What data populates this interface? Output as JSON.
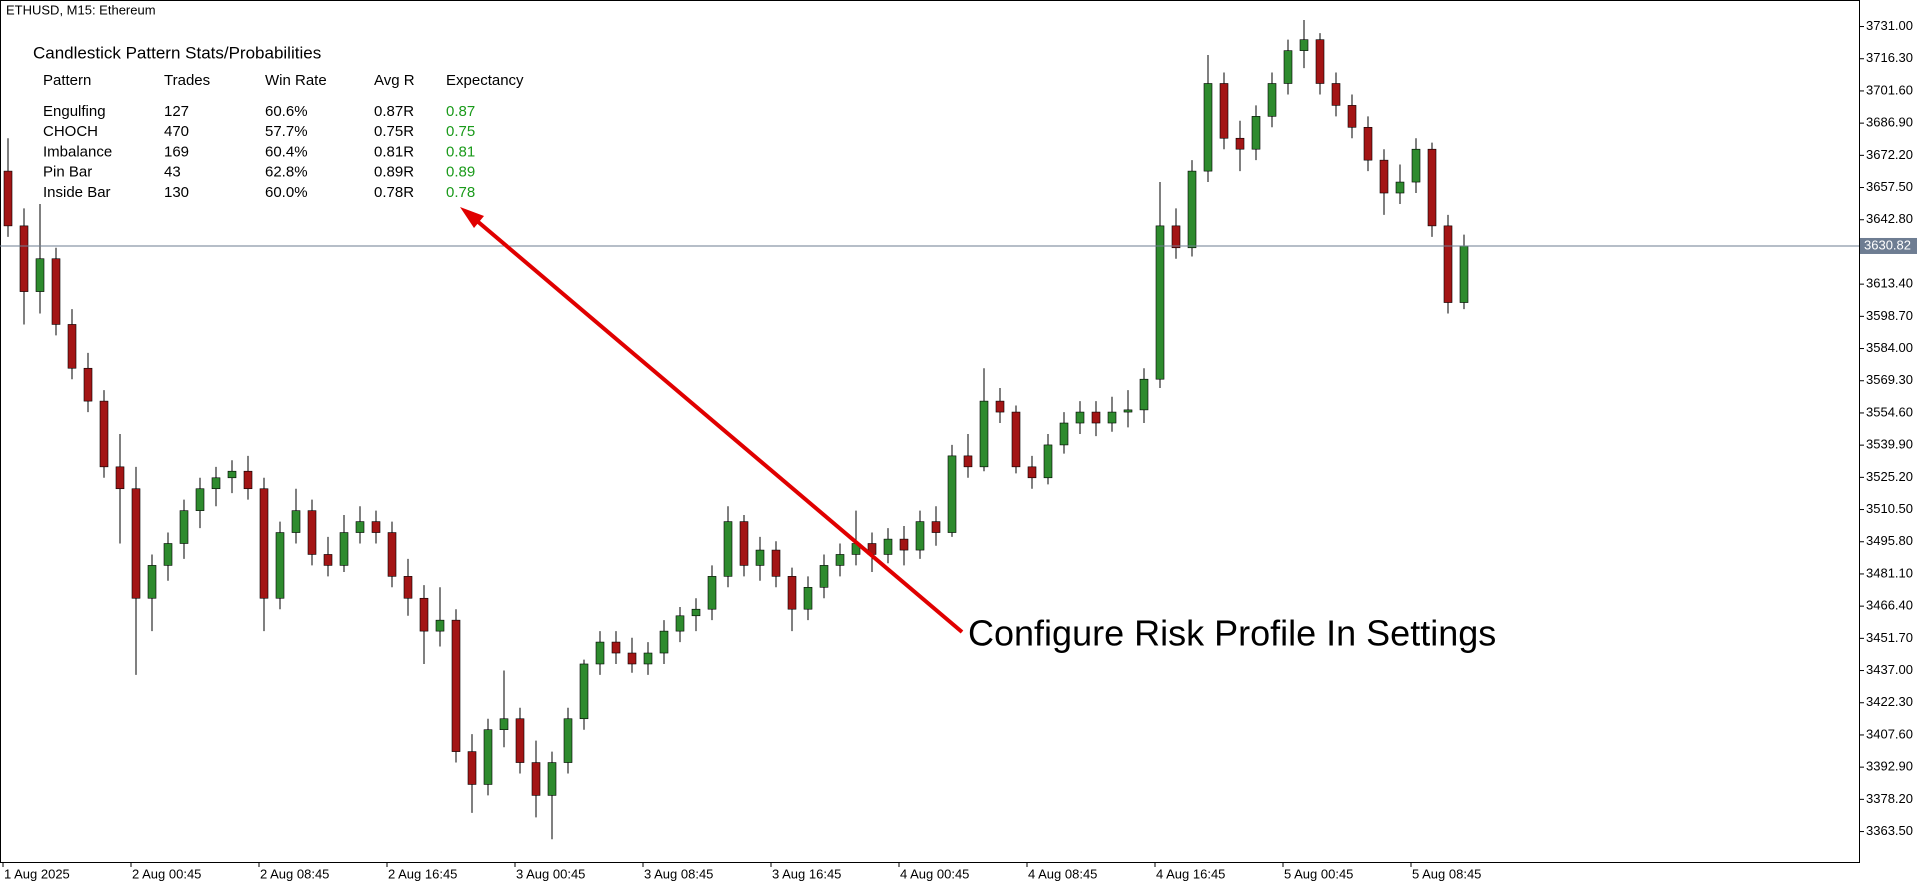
{
  "header": "ETHUSD, M15:  Ethereum",
  "stats_panel": {
    "title": "Candlestick Pattern Stats/Probabilities",
    "columns": [
      "Pattern",
      "Trades",
      "Win Rate",
      "Avg R",
      "Expectancy"
    ],
    "rows": [
      [
        "Engulfing",
        "127",
        "60.6%",
        "0.87R",
        "0.87"
      ],
      [
        "CHOCH",
        "470",
        "57.7%",
        "0.75R",
        "0.75"
      ],
      [
        "Imbalance",
        "169",
        "60.4%",
        "0.81R",
        "0.81"
      ],
      [
        "Pin Bar",
        "43",
        "62.8%",
        "0.89R",
        "0.89"
      ],
      [
        "Inside Bar",
        "130",
        "60.0%",
        "0.78R",
        "0.78"
      ]
    ],
    "expectancy_color": "#1a9a1a"
  },
  "chart_data": {
    "type": "candlestick",
    "annotation": "Configure Risk Profile In Settings",
    "up_color": "#2e8b2e",
    "down_color": "#a31515",
    "current_price": 3630.82,
    "current_price_color": "#6e7d92",
    "ylim": [
      3349.6,
      3742.2
    ],
    "yticks": [
      {
        "value": 3363.5,
        "label": "3363.50"
      },
      {
        "value": 3378.2,
        "label": "3378.20"
      },
      {
        "value": 3392.9,
        "label": "3392.90"
      },
      {
        "value": 3407.6,
        "label": "3407.60"
      },
      {
        "value": 3422.3,
        "label": "3422.30"
      },
      {
        "value": 3437,
        "label": "3437.00"
      },
      {
        "value": 3451.7,
        "label": "3451.70"
      },
      {
        "value": 3466.4,
        "label": "3466.40"
      },
      {
        "value": 3481.1,
        "label": "3481.10"
      },
      {
        "value": 3495.8,
        "label": "3495.80"
      },
      {
        "value": 3510.5,
        "label": "3510.50"
      },
      {
        "value": 3525.2,
        "label": "3525.20"
      },
      {
        "value": 3539.9,
        "label": "3539.90"
      },
      {
        "value": 3554.6,
        "label": "3554.60"
      },
      {
        "value": 3569.3,
        "label": "3569.30"
      },
      {
        "value": 3584,
        "label": "3584.00"
      },
      {
        "value": 3598.7,
        "label": "3598.70"
      },
      {
        "value": 3613.4,
        "label": "3613.40"
      },
      {
        "value": 3642.8,
        "label": "3642.80"
      },
      {
        "value": 3657.5,
        "label": "3657.50"
      },
      {
        "value": 3672.2,
        "label": "3672.20"
      },
      {
        "value": 3686.9,
        "label": "3686.90"
      },
      {
        "value": 3701.6,
        "label": "3701.60"
      },
      {
        "value": 3716.3,
        "label": "3716.30"
      },
      {
        "value": 3731,
        "label": "3731.00"
      }
    ],
    "categories": [
      "1 Aug 2025",
      null,
      null,
      null,
      null,
      null,
      null,
      null,
      "2 Aug 00:45",
      null,
      null,
      null,
      null,
      null,
      null,
      null,
      "2 Aug 08:45",
      null,
      null,
      null,
      null,
      null,
      null,
      null,
      "2 Aug 16:45",
      null,
      null,
      null,
      null,
      null,
      null,
      null,
      "3 Aug 00:45",
      null,
      null,
      null,
      null,
      null,
      null,
      null,
      "3 Aug 08:45",
      null,
      null,
      null,
      null,
      null,
      null,
      null,
      "3 Aug 16:45",
      null,
      null,
      null,
      null,
      null,
      null,
      null,
      "4 Aug 00:45",
      null,
      null,
      null,
      null,
      null,
      null,
      null,
      "4 Aug 08:45",
      null,
      null,
      null,
      null,
      null,
      null,
      null,
      "4 Aug 16:45",
      null,
      null,
      null,
      null,
      null,
      null,
      null,
      "5 Aug 00:45",
      null,
      null,
      null,
      null,
      null,
      null,
      null,
      "5 Aug 08:45",
      null,
      null,
      null
    ],
    "ohlc": [
      [
        3665,
        3680,
        3635,
        3640
      ],
      [
        3640,
        3648,
        3595,
        3610
      ],
      [
        3610,
        3650,
        3600,
        3625
      ],
      [
        3625,
        3630,
        3590,
        3595
      ],
      [
        3595,
        3602,
        3570,
        3575
      ],
      [
        3575,
        3582,
        3555,
        3560
      ],
      [
        3560,
        3565,
        3525,
        3530
      ],
      [
        3530,
        3545,
        3495,
        3520
      ],
      [
        3520,
        3530,
        3435,
        3470
      ],
      [
        3470,
        3490,
        3455,
        3485
      ],
      [
        3485,
        3500,
        3478,
        3495
      ],
      [
        3495,
        3515,
        3488,
        3510
      ],
      [
        3510,
        3525,
        3502,
        3520
      ],
      [
        3520,
        3530,
        3512,
        3525
      ],
      [
        3525,
        3533,
        3518,
        3528
      ],
      [
        3528,
        3535,
        3515,
        3520
      ],
      [
        3520,
        3525,
        3455,
        3470
      ],
      [
        3470,
        3505,
        3465,
        3500
      ],
      [
        3500,
        3520,
        3495,
        3510
      ],
      [
        3510,
        3515,
        3485,
        3490
      ],
      [
        3490,
        3498,
        3480,
        3485
      ],
      [
        3485,
        3508,
        3482,
        3500
      ],
      [
        3500,
        3512,
        3495,
        3505
      ],
      [
        3505,
        3510,
        3495,
        3500
      ],
      [
        3500,
        3505,
        3475,
        3480
      ],
      [
        3480,
        3488,
        3462,
        3470
      ],
      [
        3470,
        3476,
        3440,
        3455
      ],
      [
        3455,
        3475,
        3448,
        3460
      ],
      [
        3460,
        3465,
        3395,
        3400
      ],
      [
        3400,
        3408,
        3372,
        3385
      ],
      [
        3385,
        3415,
        3380,
        3410
      ],
      [
        3410,
        3437,
        3402,
        3415
      ],
      [
        3415,
        3420,
        3390,
        3395
      ],
      [
        3395,
        3405,
        3370,
        3380
      ],
      [
        3380,
        3400,
        3360,
        3395
      ],
      [
        3395,
        3420,
        3390,
        3415
      ],
      [
        3415,
        3442,
        3410,
        3440
      ],
      [
        3440,
        3455,
        3435,
        3450
      ],
      [
        3450,
        3455,
        3440,
        3445
      ],
      [
        3445,
        3452,
        3436,
        3440
      ],
      [
        3440,
        3450,
        3435,
        3445
      ],
      [
        3445,
        3460,
        3440,
        3455
      ],
      [
        3455,
        3466,
        3450,
        3462
      ],
      [
        3462,
        3470,
        3455,
        3465
      ],
      [
        3465,
        3485,
        3460,
        3480
      ],
      [
        3480,
        3512,
        3475,
        3505
      ],
      [
        3505,
        3508,
        3480,
        3485
      ],
      [
        3485,
        3498,
        3478,
        3492
      ],
      [
        3492,
        3496,
        3475,
        3480
      ],
      [
        3480,
        3484,
        3455,
        3465
      ],
      [
        3465,
        3480,
        3460,
        3475
      ],
      [
        3475,
        3490,
        3470,
        3485
      ],
      [
        3485,
        3495,
        3480,
        3490
      ],
      [
        3490,
        3510,
        3485,
        3495
      ],
      [
        3495,
        3500,
        3482,
        3490
      ],
      [
        3490,
        3502,
        3486,
        3497
      ],
      [
        3497,
        3503,
        3485,
        3492
      ],
      [
        3492,
        3510,
        3488,
        3505
      ],
      [
        3505,
        3512,
        3494,
        3500
      ],
      [
        3500,
        3540,
        3498,
        3535
      ],
      [
        3535,
        3545,
        3525,
        3530
      ],
      [
        3530,
        3575,
        3528,
        3560
      ],
      [
        3560,
        3566,
        3550,
        3555
      ],
      [
        3555,
        3558,
        3527,
        3530
      ],
      [
        3530,
        3535,
        3520,
        3525
      ],
      [
        3525,
        3545,
        3522,
        3540
      ],
      [
        3540,
        3555,
        3536,
        3550
      ],
      [
        3550,
        3560,
        3545,
        3555
      ],
      [
        3555,
        3560,
        3544,
        3550
      ],
      [
        3550,
        3562,
        3546,
        3555
      ],
      [
        3555,
        3565,
        3548,
        3556
      ],
      [
        3556,
        3575,
        3550,
        3570
      ],
      [
        3570,
        3660,
        3566,
        3640
      ],
      [
        3640,
        3648,
        3625,
        3630
      ],
      [
        3630,
        3670,
        3626,
        3665
      ],
      [
        3665,
        3718,
        3660,
        3705
      ],
      [
        3705,
        3710,
        3675,
        3680
      ],
      [
        3680,
        3688,
        3665,
        3675
      ],
      [
        3675,
        3695,
        3670,
        3690
      ],
      [
        3690,
        3710,
        3685,
        3705
      ],
      [
        3705,
        3725,
        3700,
        3720
      ],
      [
        3720,
        3734,
        3712,
        3725
      ],
      [
        3725,
        3728,
        3700,
        3705
      ],
      [
        3705,
        3710,
        3690,
        3695
      ],
      [
        3695,
        3700,
        3680,
        3685
      ],
      [
        3685,
        3690,
        3665,
        3670
      ],
      [
        3670,
        3675,
        3645,
        3655
      ],
      [
        3655,
        3668,
        3650,
        3660
      ],
      [
        3660,
        3680,
        3655,
        3675
      ],
      [
        3675,
        3678,
        3635,
        3640
      ],
      [
        3640,
        3645,
        3600,
        3605
      ],
      [
        3605,
        3636,
        3602,
        3630.82
      ]
    ]
  }
}
